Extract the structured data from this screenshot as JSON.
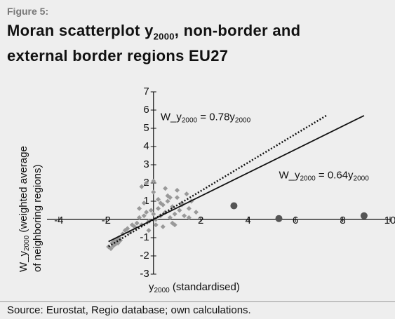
{
  "chart_data": {
    "type": "scatter",
    "figure_label": "Figure 5:",
    "title": [
      "Moran scatterplot y",
      "2000",
      ", non-border and external border regions EU27"
    ],
    "xlabel": [
      "y",
      "2000",
      " (standardised)"
    ],
    "ylabel": [
      "W_y",
      "2000",
      " (weighted average"
    ],
    "ylabel2": "of neighboring regions)",
    "annotations": [
      {
        "parts": [
          "W_y",
          "2000",
          " = 0.78y",
          "2000"
        ],
        "x": 0.3,
        "y": 5.6
      },
      {
        "parts": [
          "W_y",
          "2000",
          " = 0.64y",
          "2000"
        ],
        "x": 5.3,
        "y": 2.4
      }
    ],
    "source": "Source: Eurostat, Regio database; own calculations.",
    "xlim": [
      -4.5,
      10
    ],
    "ylim": [
      -3,
      7
    ],
    "xticks": [
      -4,
      -2,
      2,
      4,
      6,
      8,
      10
    ],
    "yticks": [
      -3,
      -2,
      -1,
      1,
      2,
      3,
      4,
      5,
      6,
      7
    ],
    "lines": [
      {
        "slope": 0.78,
        "x": [
          -1.9,
          7.3
        ],
        "dash": true,
        "color": "#111"
      },
      {
        "slope": 0.64,
        "x": [
          -1.9,
          8.9
        ],
        "dash": false,
        "color": "#111"
      }
    ],
    "series": [
      {
        "marker": "diamond",
        "color": "#999999",
        "x": [
          -1.9,
          -1.8,
          -1.75,
          -1.7,
          -1.65,
          -1.6,
          -1.55,
          -1.5,
          -1.45,
          -1.4,
          -1.3,
          -1.2,
          -1.1,
          -1.0,
          -0.9,
          -0.8,
          -0.7,
          -0.6,
          -0.5,
          -0.4,
          -0.3,
          -0.2,
          -0.1,
          0,
          0.1,
          0.2,
          0.3,
          0.4,
          0.5,
          0.6,
          0.7,
          0.8,
          0.9,
          1.0,
          1.1,
          1.2,
          1.3,
          1.4,
          1.5,
          1.6,
          1.8,
          -0.5,
          -0.3,
          0,
          0.2,
          0.4,
          0.6,
          0.8,
          1.0,
          1.2,
          -0.2,
          0.1,
          0.3,
          0.5,
          0.7,
          -0.6,
          0.9,
          1.5,
          -0.4,
          0.0
        ],
        "y": [
          -1.5,
          -1.6,
          -1.3,
          -1.45,
          -1.2,
          -1.35,
          -1.1,
          -1.3,
          -1.0,
          -1.15,
          -0.8,
          -0.6,
          -0.5,
          -0.7,
          -0.3,
          -0.4,
          -0.2,
          0.1,
          -0.3,
          0.2,
          0.4,
          -0.1,
          0.5,
          0.3,
          0.0,
          0.6,
          0.2,
          0.8,
          0.4,
          1.0,
          0.1,
          0.7,
          0.3,
          1.2,
          0.5,
          0.9,
          0.2,
          1.4,
          0.6,
          1.0,
          0.4,
          1.8,
          2.0,
          1.5,
          1.1,
          -0.4,
          1.3,
          -0.2,
          1.6,
          0.8,
          -0.6,
          -0.3,
          0.9,
          1.7,
          1.2,
          0.6,
          -0.3,
          0.1,
          0.9,
          2.1
        ]
      },
      {
        "marker": "circle",
        "color": "#555555",
        "x": [
          3.4,
          5.3,
          8.9
        ],
        "y": [
          0.75,
          0.05,
          0.2
        ]
      }
    ]
  }
}
